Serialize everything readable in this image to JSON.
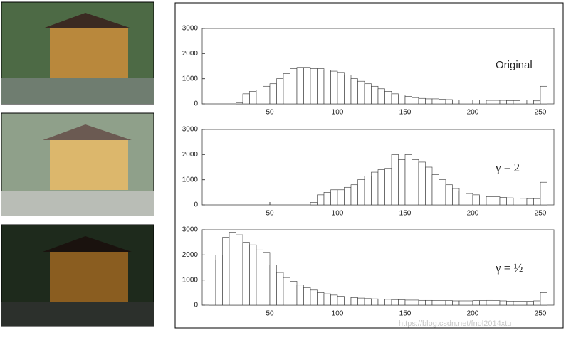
{
  "chart_data": [
    {
      "type": "histogram",
      "annotation": "Original",
      "bins": [
        0,
        5,
        10,
        15,
        20,
        25,
        30,
        35,
        40,
        45,
        50,
        55,
        60,
        65,
        70,
        75,
        80,
        85,
        90,
        95,
        100,
        105,
        110,
        115,
        120,
        125,
        130,
        135,
        140,
        145,
        150,
        155,
        160,
        165,
        170,
        175,
        180,
        185,
        190,
        195,
        200,
        205,
        210,
        215,
        220,
        225,
        230,
        235,
        240,
        245,
        250,
        255
      ],
      "values": [
        0,
        0,
        0,
        0,
        0,
        50,
        400,
        500,
        550,
        700,
        800,
        1000,
        1200,
        1400,
        1450,
        1450,
        1400,
        1400,
        1350,
        1300,
        1250,
        1150,
        1000,
        900,
        800,
        700,
        600,
        500,
        400,
        350,
        300,
        250,
        220,
        200,
        200,
        180,
        170,
        160,
        150,
        150,
        150,
        150,
        140,
        140,
        140,
        130,
        130,
        150,
        160,
        120,
        700
      ],
      "color": "#333333",
      "xlim": [
        0,
        260
      ],
      "ylim": [
        0,
        3000
      ],
      "xticks": [
        50,
        100,
        150,
        200,
        250
      ],
      "yticks": [
        0,
        1000,
        2000,
        3000
      ]
    },
    {
      "type": "histogram",
      "annotation": "γ = 2",
      "bins": [
        0,
        5,
        10,
        15,
        20,
        25,
        30,
        35,
        40,
        45,
        50,
        55,
        60,
        65,
        70,
        75,
        80,
        85,
        90,
        95,
        100,
        105,
        110,
        115,
        120,
        125,
        130,
        135,
        140,
        145,
        150,
        155,
        160,
        165,
        170,
        175,
        180,
        185,
        190,
        195,
        200,
        205,
        210,
        215,
        220,
        225,
        230,
        235,
        240,
        245,
        250,
        255
      ],
      "values": [
        0,
        0,
        0,
        0,
        0,
        0,
        0,
        0,
        0,
        0,
        0,
        0,
        0,
        0,
        0,
        0,
        100,
        400,
        500,
        600,
        600,
        700,
        800,
        1000,
        1150,
        1300,
        1400,
        1450,
        2000,
        1800,
        2000,
        1800,
        1700,
        1500,
        1200,
        1000,
        800,
        650,
        550,
        450,
        400,
        350,
        330,
        320,
        300,
        280,
        270,
        260,
        250,
        250,
        900
      ],
      "color": "#333333",
      "xlim": [
        0,
        260
      ],
      "ylim": [
        0,
        3000
      ],
      "xticks": [
        50,
        100,
        150,
        200,
        250
      ],
      "yticks": [
        0,
        1000,
        2000,
        3000
      ]
    },
    {
      "type": "histogram",
      "annotation": "γ = ½",
      "bins": [
        0,
        5,
        10,
        15,
        20,
        25,
        30,
        35,
        40,
        45,
        50,
        55,
        60,
        65,
        70,
        75,
        80,
        85,
        90,
        95,
        100,
        105,
        110,
        115,
        120,
        125,
        130,
        135,
        140,
        145,
        150,
        155,
        160,
        165,
        170,
        175,
        180,
        185,
        190,
        195,
        200,
        205,
        210,
        215,
        220,
        225,
        230,
        235,
        240,
        245,
        250,
        255
      ],
      "values": [
        0,
        1800,
        2000,
        2700,
        2900,
        2800,
        2500,
        2400,
        2200,
        2100,
        1600,
        1300,
        1100,
        950,
        800,
        700,
        600,
        500,
        450,
        400,
        350,
        330,
        300,
        280,
        260,
        250,
        240,
        230,
        220,
        210,
        200,
        200,
        190,
        190,
        180,
        180,
        180,
        170,
        170,
        170,
        180,
        180,
        190,
        180,
        170,
        160,
        160,
        150,
        150,
        170,
        500
      ],
      "color": "#333333",
      "xlim": [
        0,
        260
      ],
      "ylim": [
        0,
        3000
      ],
      "xticks": [
        50,
        100,
        150,
        200,
        250
      ],
      "yticks": [
        0,
        1000,
        2000,
        3000
      ]
    }
  ],
  "watermark": "https://blog.csdn.net/fnol2014xtu"
}
